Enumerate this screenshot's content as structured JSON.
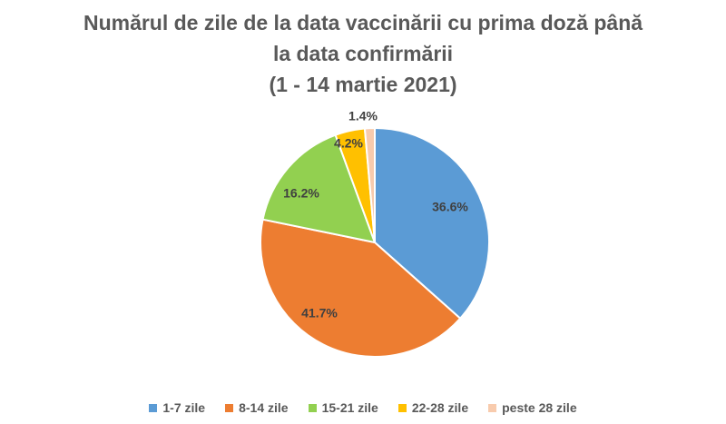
{
  "chart_data": {
    "type": "pie",
    "title_lines": [
      "Numărul de zile de la data vaccinării cu prima doză până",
      "la data confirmării",
      "(1 - 14 martie 2021)"
    ],
    "slices": [
      {
        "name": "1-7 zile",
        "value": 36.6,
        "label": "36.6%",
        "color": "#5B9BD5"
      },
      {
        "name": "8-14 zile",
        "value": 41.7,
        "label": "41.7%",
        "color": "#ED7D31"
      },
      {
        "name": "15-21 zile",
        "value": 16.2,
        "label": "16.2%",
        "color": "#92D050"
      },
      {
        "name": "22-28 zile",
        "value": 4.2,
        "label": "4.2%",
        "color": "#FFC000"
      },
      {
        "name": "peste 28 zile",
        "value": 1.4,
        "label": "1.4%",
        "color": "#F8CBAD"
      }
    ],
    "legend_position": "bottom"
  }
}
